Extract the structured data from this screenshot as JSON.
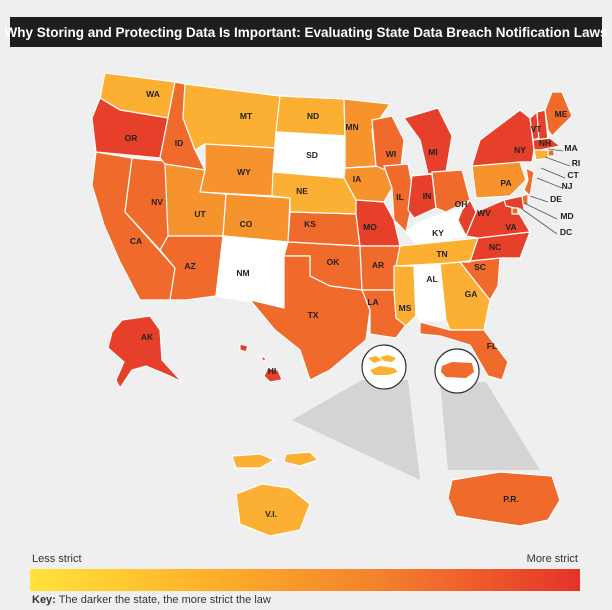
{
  "title": "Why Storing and Protecting Data Is Important: Evaluating State Data Breach Notification Laws",
  "legend": {
    "low_label": "Less strict",
    "high_label": "More strict",
    "low_color": "#ffe33a",
    "high_color": "#e6332a"
  },
  "key": {
    "prefix": "Key:",
    "text": "The darker the state, the more strict the law"
  },
  "levels": {
    "none": "#ffffff",
    "light": "#fbb033",
    "medium": "#f7932d",
    "dark": "#ef6a2b",
    "darkest": "#e6402a"
  },
  "states": [
    {
      "code": "WA",
      "level": "light"
    },
    {
      "code": "OR",
      "level": "darkest"
    },
    {
      "code": "CA",
      "level": "dark"
    },
    {
      "code": "NV",
      "level": "dark"
    },
    {
      "code": "ID",
      "level": "dark"
    },
    {
      "code": "MT",
      "level": "light"
    },
    {
      "code": "WY",
      "level": "medium"
    },
    {
      "code": "UT",
      "level": "medium"
    },
    {
      "code": "AZ",
      "level": "dark"
    },
    {
      "code": "CO",
      "level": "medium"
    },
    {
      "code": "NM",
      "level": "none"
    },
    {
      "code": "ND",
      "level": "light"
    },
    {
      "code": "SD",
      "level": "none"
    },
    {
      "code": "NE",
      "level": "light"
    },
    {
      "code": "KS",
      "level": "dark"
    },
    {
      "code": "OK",
      "level": "dark"
    },
    {
      "code": "TX",
      "level": "dark"
    },
    {
      "code": "MN",
      "level": "medium"
    },
    {
      "code": "IA",
      "level": "medium"
    },
    {
      "code": "MO",
      "level": "darkest"
    },
    {
      "code": "AR",
      "level": "dark"
    },
    {
      "code": "LA",
      "level": "dark"
    },
    {
      "code": "WI",
      "level": "dark"
    },
    {
      "code": "IL",
      "level": "dark"
    },
    {
      "code": "MI",
      "level": "darkest"
    },
    {
      "code": "IN",
      "level": "darkest"
    },
    {
      "code": "OH",
      "level": "dark"
    },
    {
      "code": "KY",
      "level": "none"
    },
    {
      "code": "TN",
      "level": "light"
    },
    {
      "code": "MS",
      "level": "light"
    },
    {
      "code": "AL",
      "level": "none"
    },
    {
      "code": "GA",
      "level": "light"
    },
    {
      "code": "FL",
      "level": "dark"
    },
    {
      "code": "SC",
      "level": "dark"
    },
    {
      "code": "NC",
      "level": "darkest"
    },
    {
      "code": "VA",
      "level": "darkest"
    },
    {
      "code": "WV",
      "level": "darkest"
    },
    {
      "code": "PA",
      "level": "medium"
    },
    {
      "code": "NY",
      "level": "darkest"
    },
    {
      "code": "VT",
      "level": "darkest"
    },
    {
      "code": "NH",
      "level": "darkest"
    },
    {
      "code": "ME",
      "level": "dark"
    },
    {
      "code": "MA",
      "level": "darkest"
    },
    {
      "code": "RI",
      "level": "dark"
    },
    {
      "code": "CT",
      "level": "light"
    },
    {
      "code": "NJ",
      "level": "dark"
    },
    {
      "code": "DE",
      "level": "dark"
    },
    {
      "code": "MD",
      "level": "darkest"
    },
    {
      "code": "DC",
      "level": "dark"
    },
    {
      "code": "AK",
      "level": "darkest"
    },
    {
      "code": "HI",
      "level": "darkest"
    },
    {
      "code": "V.I.",
      "level": "light"
    },
    {
      "code": "P.R.",
      "level": "dark"
    }
  ]
}
